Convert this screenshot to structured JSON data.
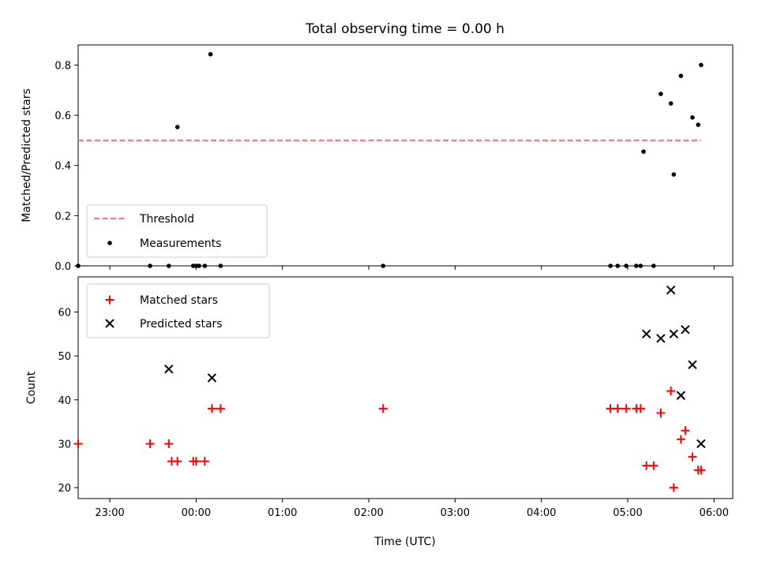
{
  "title": "Total observing time = 0.00 h",
  "xlabel": "Time (UTC)",
  "colors": {
    "threshold": "#ff7070",
    "measurements": "#000000",
    "matched": "#ff0000",
    "predicted": "#000000"
  },
  "chart_data": [
    {
      "type": "scatter",
      "ylabel": "Matched/Predicted stars",
      "xlim": [
        "22:38",
        "06:13"
      ],
      "ylim": [
        0,
        0.88
      ],
      "xticks": [
        "23:00",
        "00:00",
        "01:00",
        "02:00",
        "03:00",
        "04:00",
        "05:00",
        "06:00"
      ],
      "yticks": [
        "0.0",
        "0.2",
        "0.4",
        "0.6",
        "0.8"
      ],
      "legend_position": "lower-left",
      "legend": [
        "Threshold",
        "Measurements"
      ],
      "threshold": {
        "name": "Threshold",
        "value": 0.5,
        "x_range": [
          "22:38",
          "05:51"
        ]
      },
      "measurements": {
        "name": "Measurements",
        "x": [
          "22:38",
          "23:28",
          "23:41",
          "23:47",
          "23:58",
          "24:00",
          "24:02",
          "24:06",
          "24:10",
          "24:17",
          "02:10",
          "04:48",
          "04:53",
          "04:59",
          "05:06",
          "05:09",
          "05:11",
          "05:18",
          "05:23",
          "05:30",
          "05:32",
          "05:37",
          "05:45",
          "05:49",
          "05:51"
        ],
        "y": [
          0,
          0,
          0,
          0.553,
          0,
          0,
          0,
          0,
          0.843,
          0,
          0,
          0,
          0,
          0,
          0,
          0,
          0.455,
          0,
          0.685,
          0.647,
          0.364,
          0.757,
          0.591,
          0.562,
          0.8
        ]
      }
    },
    {
      "type": "scatter",
      "ylabel": "Count",
      "xlim": [
        "22:38",
        "06:13"
      ],
      "ylim": [
        17.5,
        68
      ],
      "xticks": [
        "23:00",
        "00:00",
        "01:00",
        "02:00",
        "03:00",
        "04:00",
        "05:00",
        "06:00"
      ],
      "yticks": [
        "20",
        "30",
        "40",
        "50",
        "60"
      ],
      "legend_position": "upper-left",
      "legend": [
        "Matched stars",
        "Predicted stars"
      ],
      "series": [
        {
          "name": "Matched stars",
          "marker": "plus",
          "x": [
            "22:38",
            "23:28",
            "23:41",
            "23:43",
            "23:47",
            "23:58",
            "24:00",
            "24:06",
            "24:11",
            "24:17",
            "02:10",
            "04:48",
            "04:53",
            "04:59",
            "05:06",
            "05:09",
            "05:13",
            "05:18",
            "05:23",
            "05:30",
            "05:32",
            "05:37",
            "05:40",
            "05:45",
            "05:49",
            "05:51"
          ],
          "y": [
            30,
            30,
            30,
            26,
            26,
            26,
            26,
            26,
            38,
            38,
            38,
            38,
            38,
            38,
            38,
            38,
            25,
            25,
            37,
            42,
            20,
            31,
            33,
            27,
            24,
            24
          ]
        },
        {
          "name": "Predicted stars",
          "marker": "x",
          "x": [
            "23:41",
            "24:11",
            "05:13",
            "05:23",
            "05:30",
            "05:32",
            "05:37",
            "05:40",
            "05:45",
            "05:51"
          ],
          "y": [
            47,
            45,
            55,
            54,
            65,
            55,
            41,
            56,
            48,
            30
          ]
        }
      ]
    }
  ]
}
